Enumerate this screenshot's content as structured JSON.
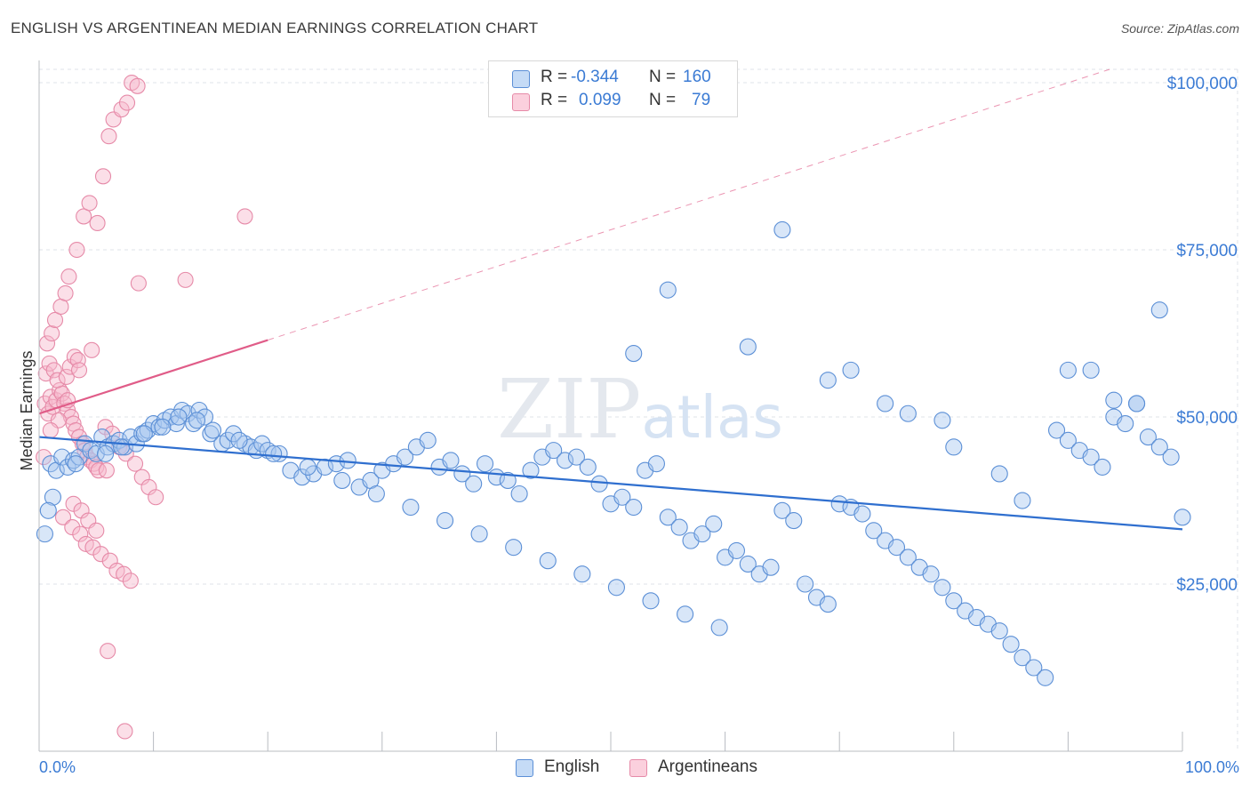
{
  "header": {
    "title": "ENGLISH VS ARGENTINEAN MEDIAN EARNINGS CORRELATION CHART",
    "source": "Source: ZipAtlas.com"
  },
  "watermark": "ZIPatlas",
  "legend_top": {
    "rows": [
      {
        "r_label": "R =",
        "r_value": "-0.344",
        "n_label": "N =",
        "n_value": "160"
      },
      {
        "r_label": "R =",
        "r_value": "0.099",
        "n_label": "N =",
        "n_value": "79"
      }
    ]
  },
  "legend_bottom": {
    "english": "English",
    "argentineans": "Argentineans"
  },
  "colors": {
    "english_fill": "#a8c8f0",
    "english_stroke": "#5b8fd6",
    "english_line": "#2f6fcf",
    "arg_fill": "#f6b8cc",
    "arg_stroke": "#e68aa8",
    "arg_line": "#e05c88",
    "axis_label": "#3b7bd4"
  },
  "chart_data": {
    "type": "scatter",
    "title": "ENGLISH VS ARGENTINEAN MEDIAN EARNINGS CORRELATION CHART",
    "xlabel": "",
    "ylabel": "Median Earnings",
    "xlim": [
      0,
      100
    ],
    "ylim": [
      0,
      102000
    ],
    "x_tick_labels": [
      "0.0%",
      "100.0%"
    ],
    "y_ticks": [
      25000,
      50000,
      75000,
      100000
    ],
    "y_tick_labels": [
      "$25,000",
      "$50,000",
      "$75,000",
      "$100,000"
    ],
    "grid": true,
    "legend_position": "top-center",
    "series": [
      {
        "name": "English",
        "r": -0.344,
        "n": 160,
        "trend": {
          "x": [
            0,
            100
          ],
          "y": [
            47000,
            33200
          ]
        },
        "points": [
          [
            1,
            43000
          ],
          [
            1.5,
            42000
          ],
          [
            2,
            44000
          ],
          [
            2.5,
            42500
          ],
          [
            3,
            43500
          ],
          [
            3.5,
            44000
          ],
          [
            4,
            46000
          ],
          [
            4.5,
            45000
          ],
          [
            5,
            44500
          ],
          [
            5.5,
            47000
          ],
          [
            6,
            45500
          ],
          [
            6.5,
            46000
          ],
          [
            7,
            46500
          ],
          [
            7.5,
            45500
          ],
          [
            8,
            47000
          ],
          [
            8.5,
            46000
          ],
          [
            9,
            47500
          ],
          [
            9.5,
            48000
          ],
          [
            10,
            49000
          ],
          [
            10.5,
            48500
          ],
          [
            11,
            49500
          ],
          [
            11.5,
            50000
          ],
          [
            12,
            49000
          ],
          [
            12.5,
            51000
          ],
          [
            13,
            50500
          ],
          [
            13.5,
            49000
          ],
          [
            14,
            51000
          ],
          [
            14.5,
            50000
          ],
          [
            15,
            47500
          ],
          [
            16,
            46000
          ],
          [
            16.5,
            46500
          ],
          [
            17,
            47500
          ],
          [
            18,
            46000
          ],
          [
            18.5,
            45500
          ],
          [
            19,
            45000
          ],
          [
            19.5,
            46000
          ],
          [
            20,
            45000
          ],
          [
            21,
            44500
          ],
          [
            22,
            42000
          ],
          [
            23,
            41000
          ],
          [
            24,
            41500
          ],
          [
            25,
            42500
          ],
          [
            26,
            43000
          ],
          [
            27,
            43500
          ],
          [
            28,
            39500
          ],
          [
            29,
            40500
          ],
          [
            30,
            42000
          ],
          [
            31,
            43000
          ],
          [
            32,
            44000
          ],
          [
            33,
            45500
          ],
          [
            34,
            46500
          ],
          [
            35,
            42500
          ],
          [
            36,
            43500
          ],
          [
            37,
            41500
          ],
          [
            38,
            40000
          ],
          [
            39,
            43000
          ],
          [
            40,
            41000
          ],
          [
            41,
            40500
          ],
          [
            42,
            38500
          ],
          [
            43,
            42000
          ],
          [
            44,
            44000
          ],
          [
            45,
            45000
          ],
          [
            46,
            43500
          ],
          [
            47,
            44000
          ],
          [
            48,
            42500
          ],
          [
            49,
            40000
          ],
          [
            50,
            37000
          ],
          [
            51,
            38000
          ],
          [
            52,
            36500
          ],
          [
            53,
            42000
          ],
          [
            54,
            43000
          ],
          [
            55,
            35000
          ],
          [
            56,
            33500
          ],
          [
            57,
            31500
          ],
          [
            58,
            32500
          ],
          [
            59,
            34000
          ],
          [
            60,
            29000
          ],
          [
            61,
            30000
          ],
          [
            62,
            28000
          ],
          [
            63,
            26500
          ],
          [
            64,
            27500
          ],
          [
            65,
            36000
          ],
          [
            66,
            34500
          ],
          [
            67,
            25000
          ],
          [
            68,
            23000
          ],
          [
            69,
            22000
          ],
          [
            70,
            37000
          ],
          [
            71,
            36500
          ],
          [
            72,
            35500
          ],
          [
            73,
            33000
          ],
          [
            74,
            31500
          ],
          [
            75,
            30500
          ],
          [
            76,
            29000
          ],
          [
            77,
            27500
          ],
          [
            78,
            26500
          ],
          [
            79,
            24500
          ],
          [
            80,
            22500
          ],
          [
            81,
            21000
          ],
          [
            82,
            20000
          ],
          [
            83,
            19000
          ],
          [
            84,
            18000
          ],
          [
            85,
            16000
          ],
          [
            86,
            14000
          ],
          [
            87,
            12500
          ],
          [
            88,
            11000
          ],
          [
            89,
            48000
          ],
          [
            90,
            46500
          ],
          [
            91,
            45000
          ],
          [
            92,
            44000
          ],
          [
            93,
            42500
          ],
          [
            94,
            50000
          ],
          [
            95,
            49000
          ],
          [
            96,
            52000
          ],
          [
            97,
            47000
          ],
          [
            98,
            45500
          ],
          [
            99,
            44000
          ],
          [
            100,
            35000
          ],
          [
            55,
            69000
          ],
          [
            52,
            59500
          ],
          [
            62,
            60500
          ],
          [
            65,
            78000
          ],
          [
            69,
            55500
          ],
          [
            71,
            57000
          ],
          [
            74,
            52000
          ],
          [
            76,
            50500
          ],
          [
            79,
            49500
          ],
          [
            80,
            45500
          ],
          [
            84,
            41500
          ],
          [
            86,
            37500
          ],
          [
            90,
            57000
          ],
          [
            92,
            57000
          ],
          [
            94,
            52500
          ],
          [
            96,
            52000
          ],
          [
            98,
            66000
          ],
          [
            1.2,
            38000
          ],
          [
            0.8,
            36000
          ],
          [
            0.5,
            32500
          ],
          [
            3.2,
            43000
          ],
          [
            5.8,
            44500
          ],
          [
            7.2,
            45500
          ],
          [
            9.2,
            47500
          ],
          [
            10.8,
            48500
          ],
          [
            12.2,
            50000
          ],
          [
            13.8,
            49500
          ],
          [
            15.2,
            48000
          ],
          [
            17.5,
            46500
          ],
          [
            20.5,
            44500
          ],
          [
            23.5,
            42500
          ],
          [
            26.5,
            40500
          ],
          [
            29.5,
            38500
          ],
          [
            32.5,
            36500
          ],
          [
            35.5,
            34500
          ],
          [
            38.5,
            32500
          ],
          [
            41.5,
            30500
          ],
          [
            44.5,
            28500
          ],
          [
            47.5,
            26500
          ],
          [
            50.5,
            24500
          ],
          [
            53.5,
            22500
          ],
          [
            56.5,
            20500
          ],
          [
            59.5,
            18500
          ]
        ]
      },
      {
        "name": "Argentineans",
        "r": 0.099,
        "n": 79,
        "trend": {
          "x": [
            0,
            20
          ],
          "y": [
            50500,
            61500
          ]
        },
        "points": [
          [
            0.5,
            52000
          ],
          [
            0.8,
            50500
          ],
          [
            1,
            53000
          ],
          [
            1.2,
            51500
          ],
          [
            1.5,
            52500
          ],
          [
            1.8,
            54000
          ],
          [
            2,
            53500
          ],
          [
            2.2,
            52000
          ],
          [
            2.5,
            51000
          ],
          [
            2.8,
            50000
          ],
          [
            3,
            49000
          ],
          [
            3.2,
            48000
          ],
          [
            3.5,
            47000
          ],
          [
            3.8,
            46000
          ],
          [
            4,
            45000
          ],
          [
            4.2,
            44000
          ],
          [
            4.5,
            43500
          ],
          [
            4.8,
            43000
          ],
          [
            5,
            42500
          ],
          [
            5.2,
            42000
          ],
          [
            0.6,
            56500
          ],
          [
            0.9,
            58000
          ],
          [
            1.3,
            57000
          ],
          [
            1.6,
            55500
          ],
          [
            2.4,
            56000
          ],
          [
            2.7,
            57500
          ],
          [
            3.1,
            59000
          ],
          [
            3.4,
            58500
          ],
          [
            0.7,
            61000
          ],
          [
            1.1,
            62500
          ],
          [
            1.4,
            64500
          ],
          [
            1.9,
            66500
          ],
          [
            2.3,
            68500
          ],
          [
            2.6,
            71000
          ],
          [
            3.3,
            75000
          ],
          [
            3.9,
            80000
          ],
          [
            4.4,
            82000
          ],
          [
            5.1,
            79000
          ],
          [
            5.6,
            86000
          ],
          [
            6.1,
            92000
          ],
          [
            6.5,
            94500
          ],
          [
            7.2,
            96000
          ],
          [
            7.7,
            97000
          ],
          [
            8.1,
            100000
          ],
          [
            8.6,
            99500
          ],
          [
            2.1,
            35000
          ],
          [
            2.9,
            33500
          ],
          [
            3.6,
            32500
          ],
          [
            4.1,
            31000
          ],
          [
            4.7,
            30500
          ],
          [
            5.4,
            29500
          ],
          [
            6.2,
            28500
          ],
          [
            6.8,
            27000
          ],
          [
            7.4,
            26500
          ],
          [
            8.0,
            25500
          ],
          [
            5.8,
            48500
          ],
          [
            6.4,
            47500
          ],
          [
            7.0,
            45500
          ],
          [
            7.6,
            44500
          ],
          [
            8.4,
            43000
          ],
          [
            9.0,
            41000
          ],
          [
            9.6,
            39500
          ],
          [
            10.2,
            38000
          ],
          [
            3.0,
            37000
          ],
          [
            3.7,
            36000
          ],
          [
            4.3,
            34500
          ],
          [
            5.0,
            33000
          ],
          [
            6.0,
            15000
          ],
          [
            7.5,
            3000
          ],
          [
            0.4,
            44000
          ],
          [
            1.7,
            49500
          ],
          [
            12.8,
            70500
          ],
          [
            18.0,
            80000
          ],
          [
            8.7,
            70000
          ],
          [
            5.9,
            42000
          ],
          [
            4.6,
            60000
          ],
          [
            3.5,
            57000
          ],
          [
            2.5,
            52500
          ],
          [
            1.0,
            48000
          ]
        ]
      }
    ]
  }
}
